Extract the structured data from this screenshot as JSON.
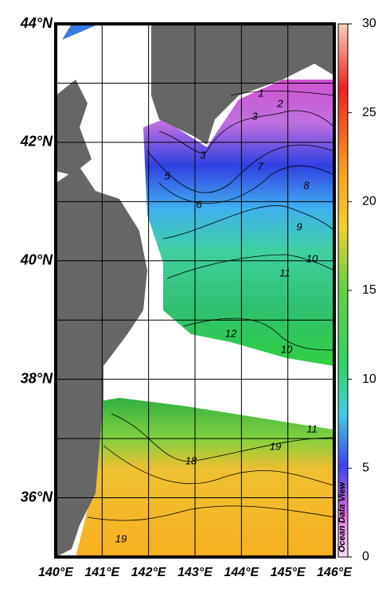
{
  "map": {
    "lat_ticks": [
      {
        "value": 44,
        "label": "44°N"
      },
      {
        "value": 42,
        "label": "42°N"
      },
      {
        "value": 40,
        "label": "40°N"
      },
      {
        "value": 38,
        "label": "38°N"
      },
      {
        "value": 36,
        "label": "36°N"
      }
    ],
    "lon_ticks": [
      {
        "value": 140,
        "label": "140°E"
      },
      {
        "value": 141,
        "label": "141°E"
      },
      {
        "value": 142,
        "label": "142°E"
      },
      {
        "value": 143,
        "label": "143°E"
      },
      {
        "value": 144,
        "label": "144°E"
      },
      {
        "value": 145,
        "label": "145°E"
      },
      {
        "value": 146,
        "label": "146°E"
      }
    ],
    "lat_lim": [
      35,
      44
    ],
    "lon_lim": [
      140,
      146
    ],
    "lat_grid": [
      43,
      42,
      41,
      40,
      39,
      38,
      37,
      36
    ],
    "lon_grid": [
      141,
      142,
      143,
      144,
      145
    ],
    "colorbar": {
      "lim": [
        0,
        30
      ],
      "ticks": [
        0,
        5,
        10,
        15,
        20,
        25,
        30
      ]
    },
    "contour_labels": [
      1,
      2,
      3,
      3,
      5,
      6,
      7,
      8,
      9,
      10,
      11,
      12,
      10,
      11,
      19,
      18,
      19
    ],
    "credit": "Ocean Data View"
  }
}
